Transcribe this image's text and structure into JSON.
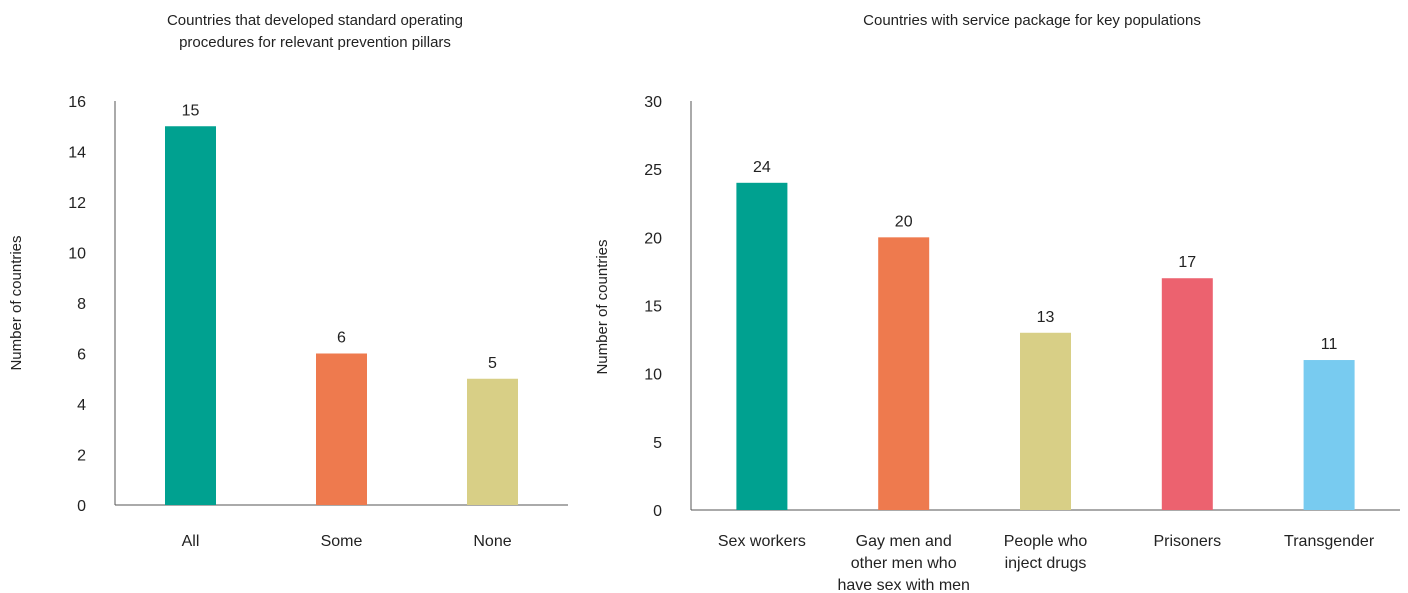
{
  "chart_data": [
    {
      "type": "bar",
      "title": [
        "Countries that developed standard operating",
        "procedures for relevant prevention pillars"
      ],
      "ylabel": "Number of countries",
      "xlabel": "",
      "ylim": [
        0,
        16
      ],
      "yticks": [
        0,
        2,
        4,
        6,
        8,
        10,
        12,
        14,
        16
      ],
      "grid": false,
      "categories": [
        [
          "All"
        ],
        [
          "Some"
        ],
        [
          "None"
        ]
      ],
      "values": [
        15,
        6,
        5
      ],
      "colors": [
        "#00a190",
        "#ee7a4e",
        "#d8cf86"
      ]
    },
    {
      "type": "bar",
      "title": [
        "Countries with service package for key populations"
      ],
      "ylabel": "Number of countries",
      "xlabel": "",
      "ylim": [
        0,
        30
      ],
      "yticks": [
        0,
        5,
        10,
        15,
        20,
        25,
        30
      ],
      "grid": false,
      "categories": [
        [
          "Sex workers"
        ],
        [
          "Gay men and",
          "other men who",
          "have sex with men"
        ],
        [
          "People who",
          "inject drugs"
        ],
        [
          "Prisoners"
        ],
        [
          "Transgender"
        ]
      ],
      "values": [
        24,
        20,
        13,
        17,
        11
      ],
      "colors": [
        "#00a190",
        "#ee7a4e",
        "#d8cf86",
        "#ec626f",
        "#78cbf0"
      ]
    }
  ]
}
